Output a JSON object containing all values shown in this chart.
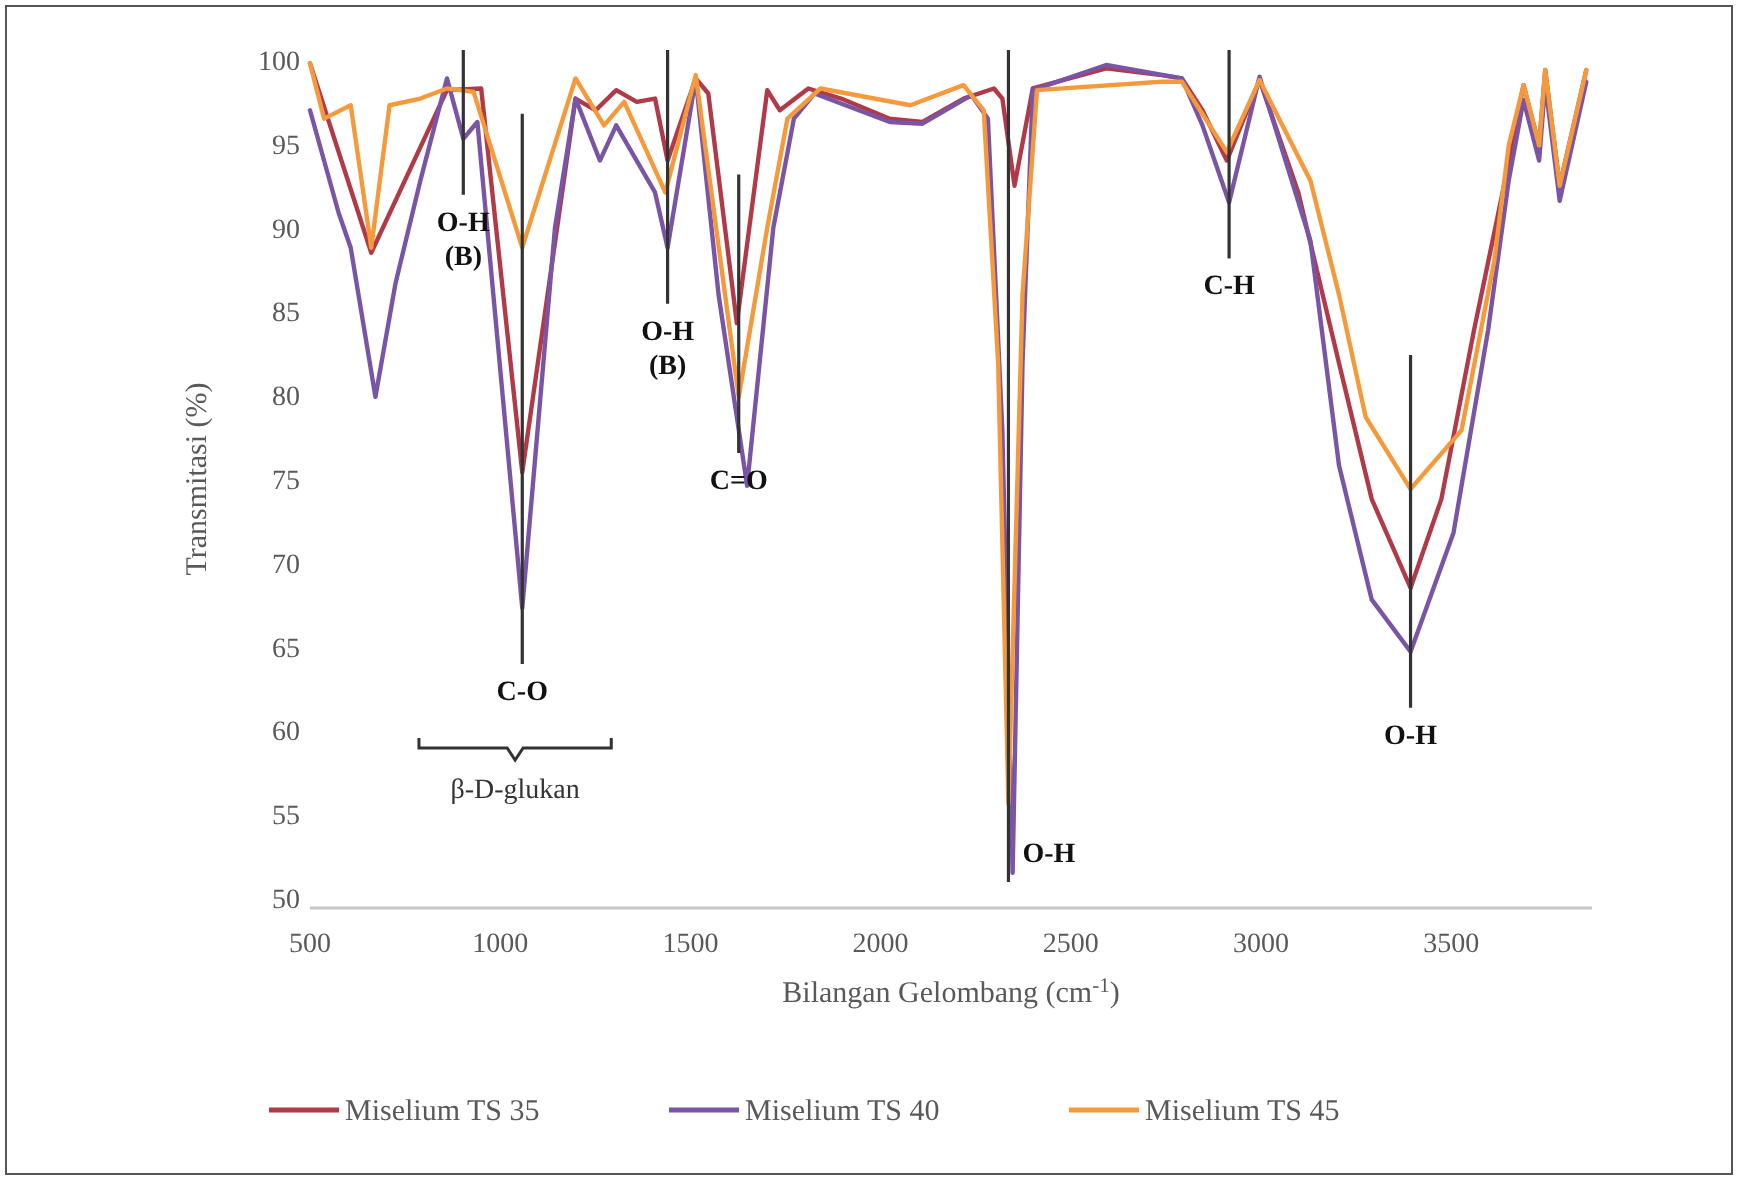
{
  "chart_data": {
    "type": "line",
    "xlabel": "Bilangan Gelombang (cm$^{-1}$)",
    "ylabel": "Transmitasi (%)",
    "xlim": [
      500,
      3870
    ],
    "xticks": [
      500,
      1000,
      1500,
      2000,
      2500,
      3000,
      3500
    ],
    "ylim": [
      50,
      100
    ],
    "yticks": [
      50,
      55,
      60,
      65,
      70,
      75,
      80,
      85,
      90,
      95,
      100
    ],
    "grid": false,
    "legend": "bottom",
    "marker": "none",
    "line_style": "solid",
    "series": [
      {
        "name": "Miselium TS 35",
        "color": "#b03a48",
        "x": [
          500,
          661,
          860,
          950,
          1058,
          1198,
          1251,
          1305,
          1359,
          1407,
          1440,
          1514,
          1547,
          1622,
          1702,
          1735,
          1810,
          1896,
          2024,
          2110,
          2218,
          2298,
          2320,
          2352,
          2400,
          2593,
          2738,
          2792,
          2846,
          2910,
          2996,
          3098,
          3205,
          3291,
          3393,
          3474,
          3560,
          3635,
          3651,
          3690,
          3731,
          3747,
          3785,
          3855
        ],
        "values": [
          99.8,
          88.5,
          98.2,
          98.3,
          75.4,
          97.7,
          97,
          98.2,
          97.5,
          97.7,
          94,
          98.9,
          98,
          84.3,
          98.2,
          97,
          98.3,
          97.7,
          96.5,
          96.3,
          97.7,
          98.3,
          97.7,
          92.5,
          98.3,
          99.5,
          99.1,
          98.9,
          97,
          94,
          98.8,
          92.1,
          81.9,
          73.8,
          68.5,
          73.8,
          83.9,
          92.1,
          94,
          98.5,
          94.9,
          99.4,
          92.5,
          99.4
        ]
      },
      {
        "name": "Miselium TS 40",
        "color": "#7a55a6",
        "x": [
          500,
          575,
          607,
          672,
          725,
          790,
          860,
          903,
          940,
          1058,
          1144,
          1198,
          1262,
          1305,
          1407,
          1440,
          1514,
          1574,
          1649,
          1718,
          1772,
          1826,
          2024,
          2110,
          2239,
          2282,
          2320,
          2347,
          2373,
          2400,
          2593,
          2792,
          2846,
          2916,
          2996,
          3130,
          3205,
          3291,
          3393,
          3506,
          3597,
          3651,
          3690,
          3731,
          3747,
          3785,
          3855
        ],
        "values": [
          97,
          90.9,
          88.8,
          79.9,
          86.7,
          92.8,
          98.9,
          95.3,
          96.3,
          67.3,
          90,
          97.7,
          94,
          96.1,
          92.1,
          88.8,
          98.9,
          86,
          74.6,
          90,
          96.5,
          98,
          96.3,
          96.2,
          97.9,
          96.5,
          77.9,
          51.5,
          81.9,
          98.2,
          99.7,
          98.9,
          96.1,
          91.5,
          99,
          89.2,
          75.8,
          67.8,
          64.7,
          71.8,
          83.9,
          92.8,
          97.6,
          94,
          98.6,
          91.6,
          98.7
        ]
      },
      {
        "name": "Miselium TS 45",
        "color": "#f59a3c",
        "x": [
          500,
          537,
          607,
          661,
          709,
          790,
          860,
          930,
          1058,
          1198,
          1273,
          1326,
          1434,
          1514,
          1627,
          1702,
          1755,
          1842,
          2078,
          2218,
          2271,
          2309,
          2336,
          2373,
          2411,
          2738,
          2792,
          2910,
          2996,
          3130,
          3205,
          3275,
          3393,
          3527,
          3613,
          3651,
          3690,
          3731,
          3747,
          3785,
          3855
        ],
        "values": [
          99.8,
          96.5,
          97.3,
          88.8,
          97.3,
          97.7,
          98.3,
          98.1,
          88.8,
          98.9,
          96.1,
          97.5,
          92.1,
          99.1,
          79.9,
          90,
          96.5,
          98.3,
          97.3,
          98.5,
          97,
          81.9,
          55.6,
          86,
          98.2,
          98.7,
          98.7,
          94.5,
          98.8,
          92.8,
          86,
          78.7,
          74.4,
          77.9,
          88,
          94.9,
          98.5,
          94.9,
          99.4,
          92.5,
          99.4
        ]
      }
    ],
    "annotations": [
      {
        "text": "O-H\n(B)",
        "x": 903,
        "y": 95.3
      },
      {
        "text": "C-O",
        "x": 1058,
        "y": 67.3
      },
      {
        "text": "O-H\n(B)",
        "x": 1440,
        "y": 88.8
      },
      {
        "text": "C=O",
        "x": 1627,
        "y": 79.9
      },
      {
        "text": "C-H",
        "x": 2916,
        "y": 91.5
      },
      {
        "text": "O-H",
        "x": 3393,
        "y": 64.7
      },
      "β-D-glukan"
    ],
    "ref_lines": [
      {
        "axis": "x",
        "value": 2336,
        "label": "O-H",
        "color": "#333333"
      }
    ]
  }
}
